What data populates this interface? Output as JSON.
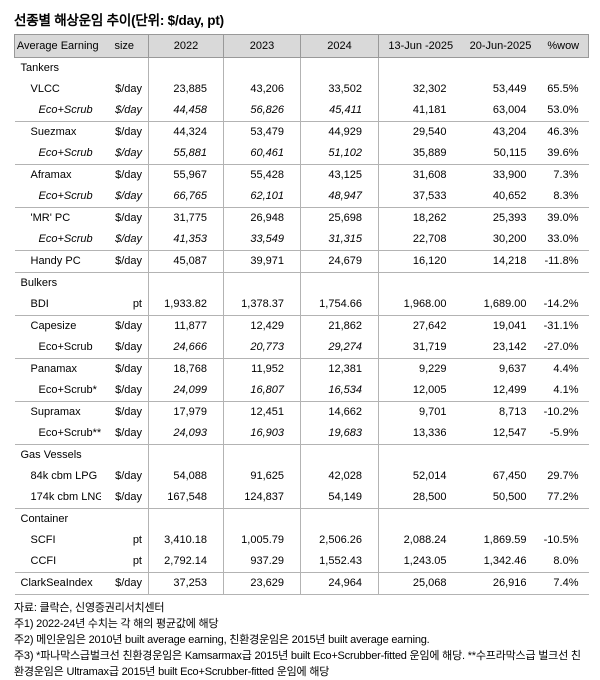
{
  "title": "선종별 해상운임 추이(단위: $/day, pt)",
  "colors": {
    "header_bg": "#d9d9d9",
    "header_border": "#999999",
    "row_border": "#b3b3b3",
    "text": "#000000"
  },
  "table": {
    "columns": [
      "Average Earning",
      "size",
      "2022",
      "2023",
      "2024",
      "13-Jun -2025",
      "20-Jun-2025",
      "%wow"
    ],
    "rows": [
      {
        "label": "Tankers",
        "indent": "group",
        "unit": "",
        "label_italic": false,
        "hist_italic": false,
        "values": [
          "",
          "",
          "",
          "",
          "",
          ""
        ],
        "sep_below": false
      },
      {
        "label": "VLCC",
        "indent": "item",
        "unit": "$/day",
        "label_italic": false,
        "hist_italic": false,
        "values": [
          "23,885",
          "43,206",
          "33,502",
          "32,302",
          "53,449",
          "65.5%"
        ],
        "sep_below": false
      },
      {
        "label": "Eco+Scrub",
        "indent": "eco",
        "unit": "$/day",
        "label_italic": true,
        "hist_italic": true,
        "values": [
          "44,458",
          "56,826",
          "45,411",
          "41,181",
          "63,004",
          "53.0%"
        ],
        "sep_below": true
      },
      {
        "label": "Suezmax",
        "indent": "item",
        "unit": "$/day",
        "label_italic": false,
        "hist_italic": false,
        "values": [
          "44,324",
          "53,479",
          "44,929",
          "29,540",
          "43,204",
          "46.3%"
        ],
        "sep_below": false
      },
      {
        "label": "Eco+Scrub",
        "indent": "eco",
        "unit": "$/day",
        "label_italic": true,
        "hist_italic": true,
        "values": [
          "55,881",
          "60,461",
          "51,102",
          "35,889",
          "50,115",
          "39.6%"
        ],
        "sep_below": true
      },
      {
        "label": "Aframax",
        "indent": "item",
        "unit": "$/day",
        "label_italic": false,
        "hist_italic": false,
        "values": [
          "55,967",
          "55,428",
          "43,125",
          "31,608",
          "33,900",
          "7.3%"
        ],
        "sep_below": false
      },
      {
        "label": "Eco+Scrub",
        "indent": "eco",
        "unit": "$/day",
        "label_italic": true,
        "hist_italic": true,
        "values": [
          "66,765",
          "62,101",
          "48,947",
          "37,533",
          "40,652",
          "8.3%"
        ],
        "sep_below": true
      },
      {
        "label": "'MR' PC",
        "indent": "item",
        "unit": "$/day",
        "label_italic": false,
        "hist_italic": false,
        "values": [
          "31,775",
          "26,948",
          "25,698",
          "18,262",
          "25,393",
          "39.0%"
        ],
        "sep_below": false
      },
      {
        "label": "Eco+Scrub",
        "indent": "eco",
        "unit": "$/day",
        "label_italic": true,
        "hist_italic": true,
        "values": [
          "41,353",
          "33,549",
          "31,315",
          "22,708",
          "30,200",
          "33.0%"
        ],
        "sep_below": true
      },
      {
        "label": "Handy PC",
        "indent": "item",
        "unit": "$/day",
        "label_italic": false,
        "hist_italic": false,
        "values": [
          "45,087",
          "39,971",
          "24,679",
          "16,120",
          "14,218",
          "-11.8%"
        ],
        "sep_below": true
      },
      {
        "label": "Bulkers",
        "indent": "group",
        "unit": "",
        "label_italic": false,
        "hist_italic": false,
        "values": [
          "",
          "",
          "",
          "",
          "",
          ""
        ],
        "sep_below": false
      },
      {
        "label": "BDI",
        "indent": "item",
        "unit": "pt",
        "label_italic": false,
        "hist_italic": false,
        "values": [
          "1,933.82",
          "1,378.37",
          "1,754.66",
          "1,968.00",
          "1,689.00",
          "-14.2%"
        ],
        "sep_below": true
      },
      {
        "label": "Capesize",
        "indent": "item",
        "unit": "$/day",
        "label_italic": false,
        "hist_italic": false,
        "values": [
          "11,877",
          "12,429",
          "21,862",
          "27,642",
          "19,041",
          "-31.1%"
        ],
        "sep_below": false
      },
      {
        "label": "Eco+Scrub",
        "indent": "eco",
        "unit": "$/day",
        "label_italic": false,
        "hist_italic": true,
        "values": [
          "24,666",
          "20,773",
          "29,274",
          "31,719",
          "23,142",
          "-27.0%"
        ],
        "sep_below": true
      },
      {
        "label": "Panamax",
        "indent": "item",
        "unit": "$/day",
        "label_italic": false,
        "hist_italic": false,
        "values": [
          "18,768",
          "11,952",
          "12,381",
          "9,229",
          "9,637",
          "4.4%"
        ],
        "sep_below": false
      },
      {
        "label": "Eco+Scrub*",
        "indent": "eco",
        "unit": "$/day",
        "label_italic": false,
        "hist_italic": true,
        "values": [
          "24,099",
          "16,807",
          "16,534",
          "12,005",
          "12,499",
          "4.1%"
        ],
        "sep_below": true
      },
      {
        "label": "Supramax",
        "indent": "item",
        "unit": "$/day",
        "label_italic": false,
        "hist_italic": false,
        "values": [
          "17,979",
          "12,451",
          "14,662",
          "9,701",
          "8,713",
          "-10.2%"
        ],
        "sep_below": false
      },
      {
        "label": "Eco+Scrub**",
        "indent": "eco",
        "unit": "$/day",
        "label_italic": false,
        "hist_italic": true,
        "values": [
          "24,093",
          "16,903",
          "19,683",
          "13,336",
          "12,547",
          "-5.9%"
        ],
        "sep_below": true
      },
      {
        "label": "Gas Vessels",
        "indent": "group",
        "unit": "",
        "label_italic": false,
        "hist_italic": false,
        "values": [
          "",
          "",
          "",
          "",
          "",
          ""
        ],
        "sep_below": false
      },
      {
        "label": "84k cbm LPG",
        "indent": "item",
        "unit": "$/day",
        "label_italic": false,
        "hist_italic": false,
        "values": [
          "54,088",
          "91,625",
          "42,028",
          "52,014",
          "67,450",
          "29.7%"
        ],
        "sep_below": false
      },
      {
        "label": "174k cbm LNG",
        "indent": "item",
        "unit": "$/day",
        "label_italic": false,
        "hist_italic": false,
        "values": [
          "167,548",
          "124,837",
          "54,149",
          "28,500",
          "50,500",
          "77.2%"
        ],
        "sep_below": true
      },
      {
        "label": "Container",
        "indent": "group",
        "unit": "",
        "label_italic": false,
        "hist_italic": false,
        "values": [
          "",
          "",
          "",
          "",
          "",
          ""
        ],
        "sep_below": false
      },
      {
        "label": "SCFI",
        "indent": "item",
        "unit": "pt",
        "label_italic": false,
        "hist_italic": false,
        "values": [
          "3,410.18",
          "1,005.79",
          "2,506.26",
          "2,088.24",
          "1,869.59",
          "-10.5%"
        ],
        "sep_below": false
      },
      {
        "label": "CCFI",
        "indent": "item",
        "unit": "pt",
        "label_italic": false,
        "hist_italic": false,
        "values": [
          "2,792.14",
          "937.29",
          "1,552.43",
          "1,243.05",
          "1,342.46",
          "8.0%"
        ],
        "sep_below": true
      },
      {
        "label": "ClarkSeaIndex",
        "indent": "group",
        "unit": "$/day",
        "label_italic": false,
        "hist_italic": false,
        "values": [
          "37,253",
          "23,629",
          "24,964",
          "25,068",
          "26,916",
          "7.4%"
        ],
        "sep_below": true
      }
    ]
  },
  "footer": {
    "source": "자료: 클락슨, 신영증권리서치센터",
    "note1": "주1) 2022-24년 수치는 각 해의 평균값에 해당",
    "note2": "주2) 메인운임은 2010년 built average earning, 친환경운임은 2015년 built average earning.",
    "note3": "주3) *파나막스급벌크선 친환경운임은 Kamsarmax급 2015년 built Eco+Scrubber-fitted 운임에 해당. **수프라막스급 벌크선 친환경운임은 Ultramax급 2015년 built Eco+Scrubber-fitted 운임에 해당"
  }
}
